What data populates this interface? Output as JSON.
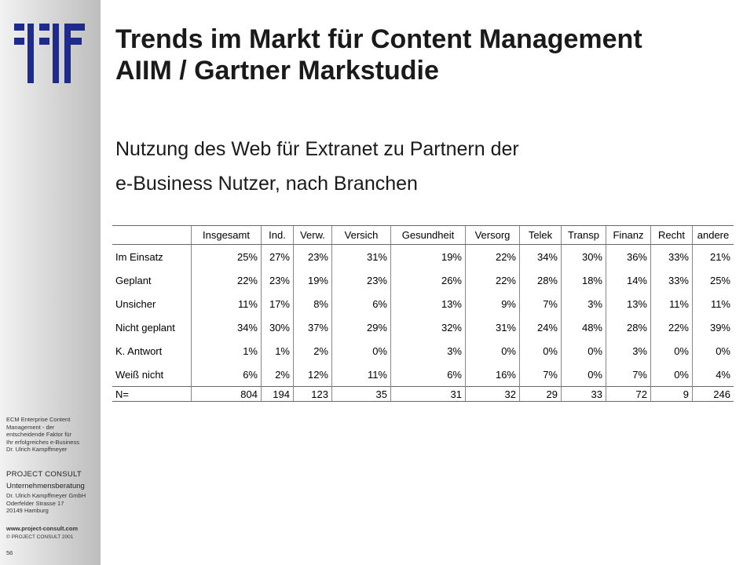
{
  "sidebar": {
    "description": [
      "ECM Enterprise Content",
      "Management - der",
      "entscheidende Faktor für",
      "Ihr erfolgreiches e-Business",
      "Dr. Ulrich Kampffmeyer"
    ],
    "company": "PROJECT CONSULT",
    "company_sub": "Unternehmensberatung",
    "address": [
      "Dr. Ulrich Kampffmeyer GmbH",
      "Oderfelder Strasse 17",
      "20149 Hamburg"
    ],
    "website": "www.project-consult.com",
    "copyright": "© PROJECT CONSULT 2001",
    "page_number": "56"
  },
  "title": {
    "line1": "Trends im Markt für Content Management",
    "line2": "AIIM / Gartner Markstudie"
  },
  "subtitle": {
    "line1": "Nutzung des Web für Extranet zu Partnern der",
    "line2": "e-Business Nutzer, nach Branchen"
  },
  "colors": {
    "logo_blue": "#1e2a8c"
  },
  "table": {
    "headers": [
      "",
      "Insgesamt",
      "Ind.",
      "Verw.",
      "Versich",
      "Gesundheit",
      "Versorg",
      "Telek",
      "Transp",
      "Finanz",
      "Recht",
      "andere"
    ],
    "rows": [
      [
        "Im Einsatz",
        "25%",
        "27%",
        "23%",
        "31%",
        "19%",
        "22%",
        "34%",
        "30%",
        "36%",
        "33%",
        "21%"
      ],
      [
        "Geplant",
        "22%",
        "23%",
        "19%",
        "23%",
        "26%",
        "22%",
        "28%",
        "18%",
        "14%",
        "33%",
        "25%"
      ],
      [
        "Unsicher",
        "11%",
        "17%",
        "8%",
        "6%",
        "13%",
        "9%",
        "7%",
        "3%",
        "13%",
        "11%",
        "11%"
      ],
      [
        "Nicht geplant",
        "34%",
        "30%",
        "37%",
        "29%",
        "32%",
        "31%",
        "24%",
        "48%",
        "28%",
        "22%",
        "39%"
      ],
      [
        "K. Antwort",
        "1%",
        "1%",
        "2%",
        "0%",
        "3%",
        "0%",
        "0%",
        "0%",
        "3%",
        "0%",
        "0%"
      ],
      [
        "Weiß nicht",
        "6%",
        "2%",
        "12%",
        "11%",
        "6%",
        "16%",
        "7%",
        "0%",
        "7%",
        "0%",
        "4%"
      ]
    ],
    "n_row": [
      "N=",
      "804",
      "194",
      "123",
      "35",
      "31",
      "32",
      "29",
      "33",
      "72",
      "9",
      "246"
    ]
  }
}
